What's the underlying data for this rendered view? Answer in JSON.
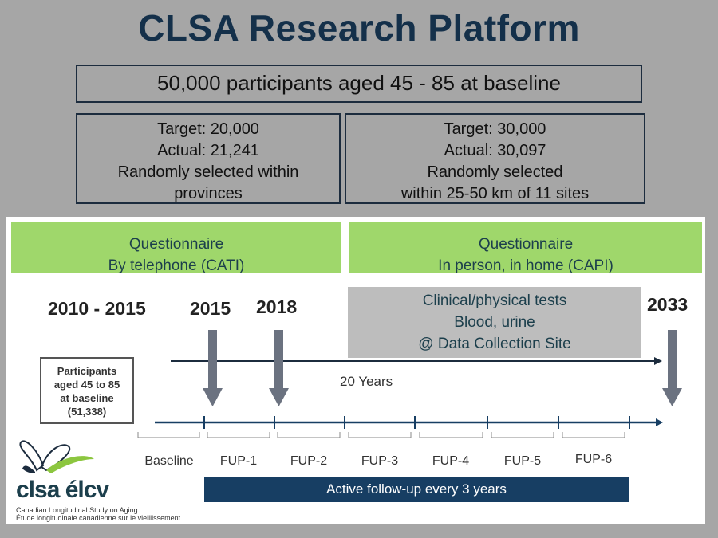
{
  "title": "CLSA Research Platform",
  "main_box": "50,000 participants aged 45 - 85 at baseline",
  "left_box": {
    "line1": "Target: 20,000",
    "line2": "Actual: 21,241",
    "line3": "Randomly selected within",
    "line4": "provinces"
  },
  "right_box": {
    "line1": "Target: 30,000",
    "line2": "Actual: 30,097",
    "line3": "Randomly selected",
    "line4": "within 25-50 km of 11 sites"
  },
  "questionnaire_left": {
    "line1": "Questionnaire",
    "line2": "By telephone (CATI)"
  },
  "questionnaire_right": {
    "line1": "Questionnaire",
    "line2": "In person, in home  (CAPI)"
  },
  "clinical": {
    "line1": "Clinical/physical tests",
    "line2": "Blood, urine",
    "line3": "@ Data Collection Site"
  },
  "years": {
    "y1": "2010 - 2015",
    "y2": "2015",
    "y3": "2018",
    "y4": "2033"
  },
  "baseline_box": {
    "line1": "Participants",
    "line2": "aged 45 to 85",
    "line3": "at baseline",
    "line4": "(51,338)"
  },
  "duration_label": "20 Years",
  "phases": [
    "Baseline",
    "FUP-1",
    "FUP-2",
    "FUP-3",
    "FUP-4",
    "FUP-5",
    "FUP-6"
  ],
  "active_followup": "Active follow-up every 3 years",
  "logo": {
    "name": "clsa élcv",
    "sub_en": "Canadian Longitudinal Study on Aging",
    "sub_fr": "Étude longitudinale canadienne sur le vieillissement"
  },
  "colors": {
    "navy": "#173e63",
    "green": "#9fd76b",
    "gray_box": "#bdbdbd",
    "arrow": "#6b7280",
    "logo_green": "#8cc63f"
  }
}
